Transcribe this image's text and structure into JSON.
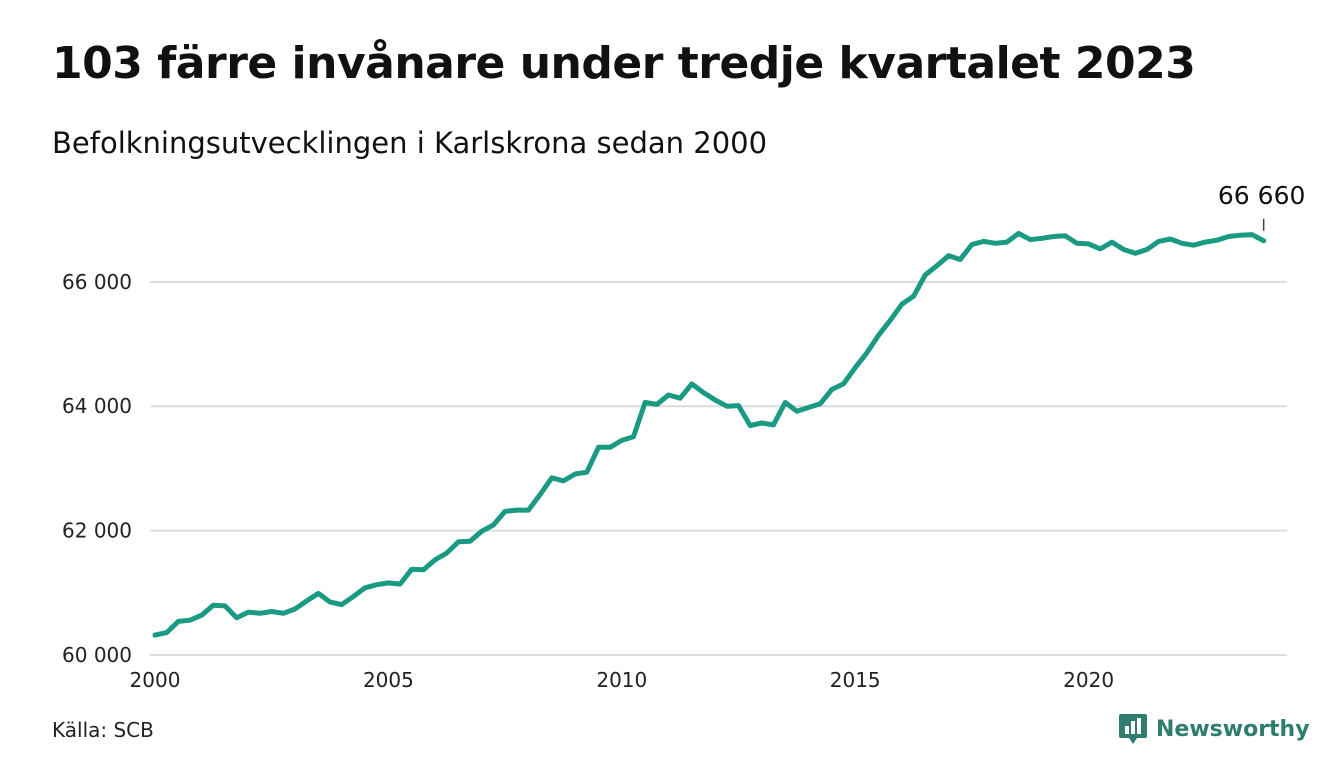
{
  "header": {
    "title": "103 färre invånare under tredje kvartalet 2023",
    "subtitle": "Befolkningsutvecklingen i Karlskrona sedan 2000"
  },
  "footer": {
    "source": "Källa: SCB",
    "logo_text": "Newsworthy",
    "logo_icon": "chart-bubble-icon"
  },
  "colors": {
    "line": "#1a9a83",
    "grid": "#dddddd",
    "logo": "#2e7d6e"
  },
  "chart_data": {
    "type": "line",
    "title": "103 färre invånare under tredje kvartalet 2023",
    "subtitle": "Befolkningsutvecklingen i Karlskrona sedan 2000",
    "xlabel": "",
    "ylabel": "",
    "xlim": [
      2000,
      2024.25
    ],
    "ylim": [
      60000,
      66850
    ],
    "x_ticks": [
      2000,
      2005,
      2010,
      2015,
      2020
    ],
    "x_tick_labels": [
      "2000",
      "2005",
      "2010",
      "2015",
      "2020"
    ],
    "y_ticks": [
      60000,
      62000,
      64000,
      66000
    ],
    "y_tick_labels": [
      "60 000",
      "62 000",
      "64 000",
      "66 000"
    ],
    "grid": "horizontal",
    "legend": "none",
    "annotation": {
      "text": "66 660",
      "x": 2023.75,
      "y": 66660
    },
    "series": [
      {
        "x": [
          2000.0,
          2000.25,
          2000.5,
          2000.75,
          2001.0,
          2001.25,
          2001.5,
          2001.75,
          2002.0,
          2002.25,
          2002.5,
          2002.75,
          2003.0,
          2003.25,
          2003.5,
          2003.75,
          2004.0,
          2004.25,
          2004.5,
          2004.75,
          2005.0,
          2005.25,
          2005.5,
          2005.75,
          2006.0,
          2006.25,
          2006.5,
          2006.75,
          2007.0,
          2007.25,
          2007.5,
          2007.75,
          2008.0,
          2008.25,
          2008.5,
          2008.75,
          2009.0,
          2009.25,
          2009.5,
          2009.75,
          2010.0,
          2010.25,
          2010.5,
          2010.75,
          2011.0,
          2011.25,
          2011.5,
          2011.75,
          2012.0,
          2012.25,
          2012.5,
          2012.75,
          2013.0,
          2013.25,
          2013.5,
          2013.75,
          2014.0,
          2014.25,
          2014.5,
          2014.75,
          2015.0,
          2015.25,
          2015.5,
          2015.75,
          2016.0,
          2016.25,
          2016.5,
          2016.75,
          2017.0,
          2017.25,
          2017.5,
          2017.75,
          2018.0,
          2018.25,
          2018.5,
          2018.75,
          2019.0,
          2019.25,
          2019.5,
          2019.75,
          2020.0,
          2020.25,
          2020.5,
          2020.75,
          2021.0,
          2021.25,
          2021.5,
          2021.75,
          2022.0,
          2022.25,
          2022.5,
          2022.75,
          2023.0,
          2023.25,
          2023.5,
          2023.75
        ],
        "values": [
          60320,
          60360,
          60540,
          60560,
          60640,
          60800,
          60790,
          60600,
          60690,
          60670,
          60700,
          60670,
          60740,
          60870,
          60990,
          60850,
          60810,
          60940,
          61080,
          61130,
          61160,
          61140,
          61380,
          61370,
          61530,
          61640,
          61820,
          61830,
          61990,
          62090,
          62310,
          62330,
          62330,
          62580,
          62850,
          62800,
          62910,
          62940,
          63340,
          63340,
          63450,
          63510,
          64060,
          64030,
          64180,
          64130,
          64360,
          64220,
          64100,
          64000,
          64010,
          63690,
          63730,
          63700,
          64060,
          63920,
          63980,
          64040,
          64270,
          64360,
          64620,
          64860,
          65140,
          65380,
          65640,
          65770,
          66110,
          66260,
          66420,
          66360,
          66600,
          66650,
          66620,
          66640,
          66780,
          66680,
          66700,
          66730,
          66740,
          66620,
          66610,
          66530,
          66640,
          66520,
          66460,
          66520,
          66650,
          66690,
          66620,
          66590,
          66640,
          66670,
          66730,
          66750,
          66760,
          66660
        ]
      }
    ]
  }
}
